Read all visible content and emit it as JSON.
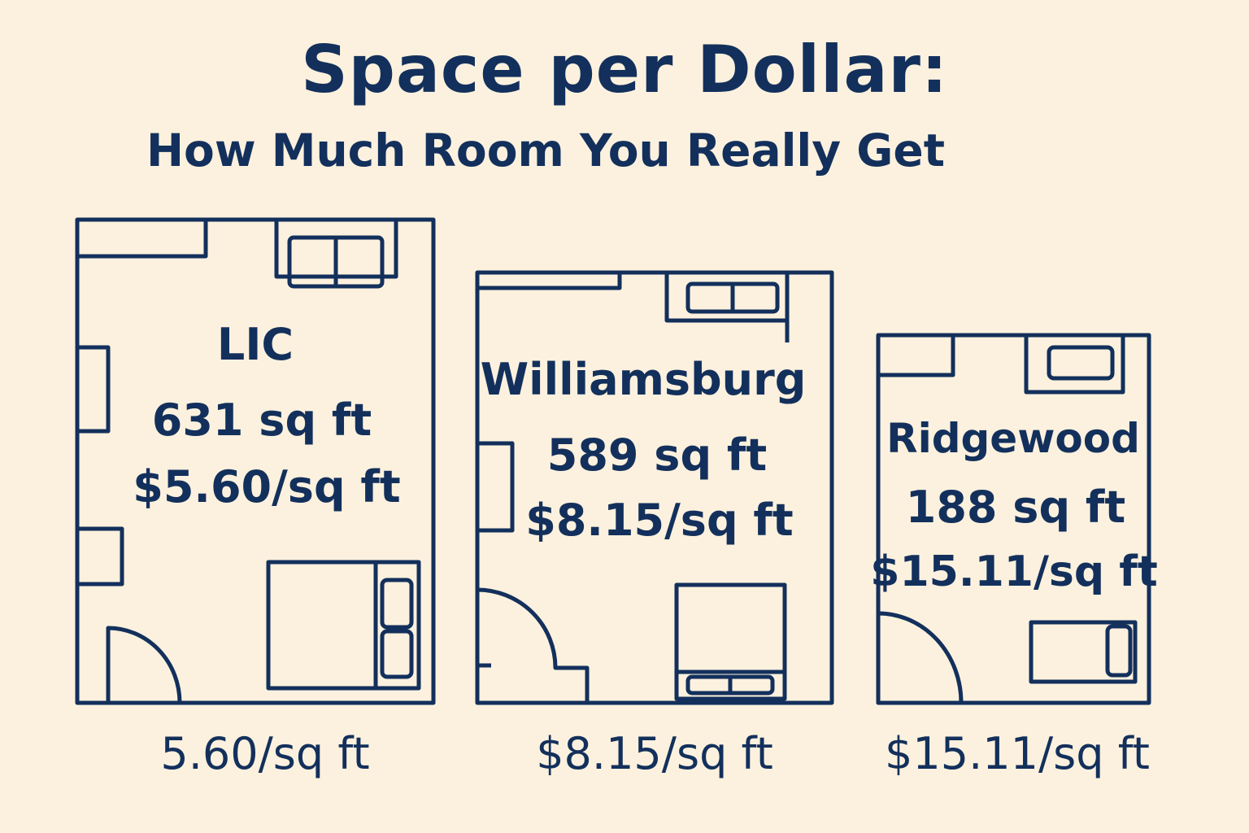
{
  "title": "Space per Dollar:",
  "subtitle": "How Much Room You Really Get",
  "colors": {
    "ink": "#13305c",
    "background": "#fcf1de",
    "lic": "#acd9a0",
    "williamsburg": "#f4bd78",
    "ridgewood": "#98cbb7"
  },
  "rooms": [
    {
      "name": "LIC",
      "area": "631 sq ft",
      "price": "$5.60/sq ft",
      "caption": "5.60/sq ft"
    },
    {
      "name": "Williamsburg",
      "area": "589 sq ft",
      "price": "$8.15/sq ft",
      "caption": "$8.15/sq ft"
    },
    {
      "name": "Ridgewood",
      "area": "188 sq ft",
      "price": "$15.11/sq ft",
      "caption": "$15.11/sq ft"
    }
  ]
}
